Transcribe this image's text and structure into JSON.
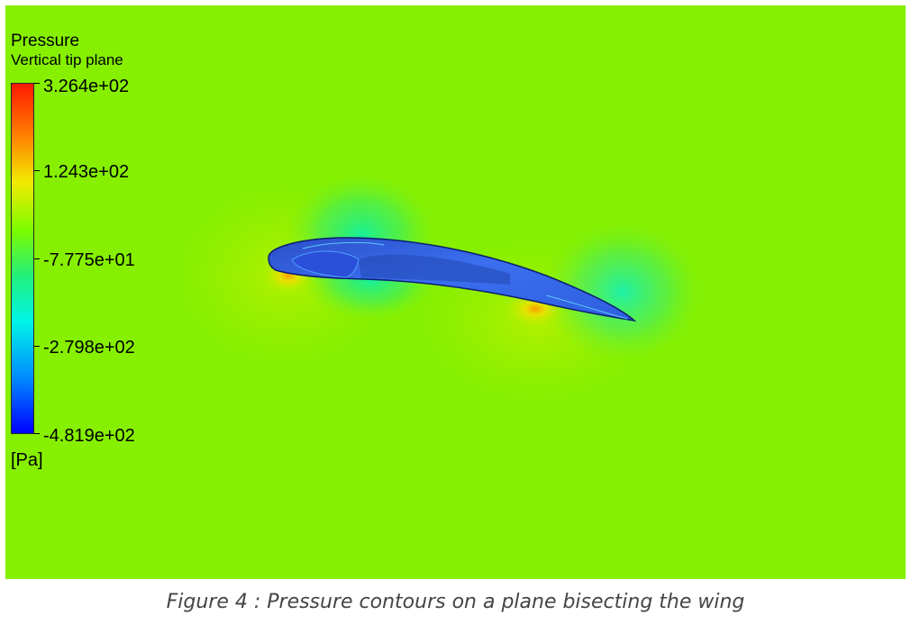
{
  "figure": {
    "legend": {
      "title": "Pressure",
      "subtitle": "Vertical tip plane",
      "ticks": [
        "3.264e+02",
        "1.243e+02",
        "-7.775e+01",
        "-2.798e+02",
        "-4.819e+02"
      ],
      "unit": "[Pa]"
    },
    "colors": {
      "background_field": "#88f000",
      "airfoil_surface": "#2b5fe0",
      "airfoil_edge": "#0b1e70",
      "high_pressure": "#ff1a00",
      "low_pressure": "#0000ff"
    }
  },
  "caption": "Figure 4 : Pressure contours on a plane bisecting the wing"
}
